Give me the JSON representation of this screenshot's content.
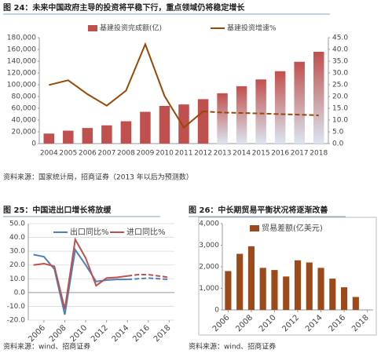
{
  "chart_data": [
    {
      "type": "bar",
      "title": "图 24：未来中国政府主导的投资将平稳下行，重点领域仍将稳定增长",
      "source": "资料来源：国家统计局，招商证券（2013 年以后为预测数）",
      "categories": [
        "2004",
        "2005",
        "2006",
        "2007",
        "2008",
        "2009",
        "2010",
        "2011",
        "2012",
        "2013",
        "2014",
        "2015",
        "2016",
        "2017",
        "2018"
      ],
      "series": [
        {
          "name": "基建投资完成额(亿)",
          "type": "bar",
          "color": "#c0504d",
          "values": [
            17000,
            22000,
            26500,
            31000,
            38000,
            54000,
            64000,
            66500,
            75500,
            85500,
            97500,
            109000,
            123000,
            139000,
            156000
          ]
        },
        {
          "name": "基建投资增速%",
          "type": "line",
          "axis": "y2",
          "color": "#984807",
          "values": [
            24.9,
            26.9,
            21.0,
            16.1,
            22.5,
            42.2,
            20.2,
            6.8,
            13.7,
            13.2,
            13.0,
            12.8,
            12.5,
            12.3,
            12.0
          ]
        }
      ],
      "ylim": [
        0,
        180000
      ],
      "yticks": [
        0,
        {
          "value": 20000,
          "label": "20,000"
        },
        {
          "value": 40000,
          "label": "40,000"
        },
        {
          "value": 60000,
          "label": "60,000"
        },
        {
          "value": 80000,
          "label": "80,000"
        },
        {
          "value": 100000,
          "label": "100,000"
        },
        {
          "value": 120000,
          "label": "120,000"
        },
        {
          "value": 140000,
          "label": "140,000"
        },
        {
          "value": 160000,
          "label": "160,000"
        },
        {
          "value": 180000,
          "label": "180,000"
        }
      ],
      "y2lim": [
        0,
        45
      ],
      "y2ticks": [
        {
          "value": 0,
          "label": "0.0"
        },
        {
          "value": 5,
          "label": "5.0"
        },
        {
          "value": 10,
          "label": "10.0"
        },
        {
          "value": 15,
          "label": "15.0"
        },
        {
          "value": 20,
          "label": "20.0"
        },
        {
          "value": 25,
          "label": "25.0"
        },
        {
          "value": 30,
          "label": "30.0"
        },
        {
          "value": 35,
          "label": "35.0"
        },
        {
          "value": 40,
          "label": "40.0"
        },
        {
          "value": 45,
          "label": "45.0"
        }
      ],
      "forecast_from": 9,
      "grid": false
    },
    {
      "type": "line",
      "title": "图 25：中国进出口增长将放缓",
      "source": "资料来源：wind、招商证券",
      "x": [
        2005,
        2006,
        2007,
        2008,
        2009,
        2010,
        2011,
        2012,
        2013,
        2014,
        2015,
        2016,
        2017,
        2018
      ],
      "series": [
        {
          "name": "出口同比%",
          "color": "#4f81bd",
          "values": [
            27.5,
            26,
            17,
            -16,
            31,
            20,
            8,
            9,
            9.5,
            9.5,
            10,
            10.5,
            10,
            9.5
          ]
        },
        {
          "name": "进口同比%",
          "color": "#c0504d",
          "values": [
            20,
            21,
            19,
            -12,
            38.5,
            25,
            5,
            10.5,
            11,
            12,
            13,
            13,
            12,
            11
          ]
        }
      ],
      "xlim": [
        2004.5,
        2018.5
      ],
      "xticks": [
        2006,
        2008,
        2010,
        2012,
        2014,
        2016,
        2018
      ],
      "ylim": [
        -20,
        50
      ],
      "yticks": [
        {
          "value": 50,
          "label": "50.0"
        },
        {
          "value": 40,
          "label": "40.0"
        },
        {
          "value": 30,
          "label": "30.0"
        },
        {
          "value": 20,
          "label": "20.0"
        },
        {
          "value": 10,
          "label": "10.0"
        },
        {
          "value": 0,
          "label": "0.0"
        },
        {
          "value": -10,
          "label": "-10.0"
        },
        {
          "value": -20,
          "label": "-20.0"
        }
      ],
      "forecast_from": 10,
      "grid": true
    },
    {
      "type": "bar",
      "title": "图 26：中长期贸易平衡状况将逐渐改善",
      "source": "资料来源：wind、招商证券",
      "x": [
        2006,
        2007,
        2008,
        2009,
        2010,
        2011,
        2012,
        2013,
        2014,
        2015,
        2016,
        2017
      ],
      "series": [
        {
          "name": "贸易差额(亿美元)",
          "color": "#9c4a1a",
          "values": [
            1800,
            2600,
            2950,
            1950,
            1850,
            1550,
            2300,
            2200,
            1950,
            1450,
            1050,
            600
          ]
        }
      ],
      "xlim": [
        2005.5,
        2018.5
      ],
      "xticks": [
        2006,
        2008,
        2010,
        2012,
        2014,
        2016,
        2018
      ],
      "ylim": [
        0,
        4000
      ],
      "yticks": [
        0,
        {
          "value": 1000,
          "label": "1,000"
        },
        {
          "value": 2000,
          "label": "2,000"
        },
        {
          "value": 3000,
          "label": "3,000"
        },
        {
          "value": 4000,
          "label": "4,000"
        }
      ],
      "grid": false
    }
  ]
}
